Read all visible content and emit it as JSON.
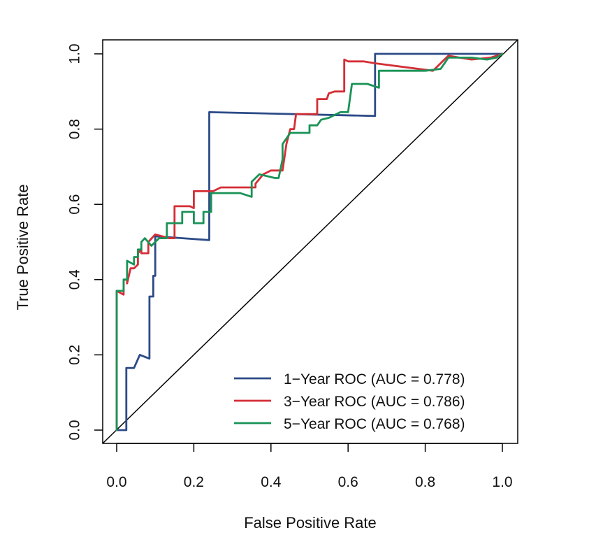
{
  "chart_data": {
    "type": "line",
    "title": "",
    "xlabel": "False Positive Rate",
    "ylabel": "True Positive Rate",
    "xlim": [
      0.0,
      1.0
    ],
    "ylim": [
      0.0,
      1.0
    ],
    "xticks": [
      "0.0",
      "0.2",
      "0.4",
      "0.6",
      "0.8",
      "1.0"
    ],
    "yticks": [
      "0.0",
      "0.2",
      "0.4",
      "0.6",
      "0.8",
      "1.0"
    ],
    "grid": false,
    "legend_position": "bottom-right",
    "reference_line": {
      "x": [
        0,
        1
      ],
      "y": [
        0,
        1
      ],
      "color": "#000000"
    },
    "series": [
      {
        "name": "1−Year ROC (AUC = 0.778)",
        "color": "#2c4b87",
        "x": [
          0.0,
          0.025,
          0.025,
          0.045,
          0.06,
          0.085,
          0.085,
          0.095,
          0.095,
          0.1,
          0.1,
          0.24,
          0.24,
          0.67,
          0.67,
          1.0
        ],
        "y": [
          0.0,
          0.0,
          0.165,
          0.165,
          0.2,
          0.19,
          0.355,
          0.355,
          0.41,
          0.41,
          0.515,
          0.505,
          0.845,
          0.835,
          1.0,
          1.0
        ]
      },
      {
        "name": "3−Year ROC (AUC = 0.786)",
        "color": "#d42e36",
        "x": [
          0.0,
          0.0,
          0.018,
          0.018,
          0.027,
          0.027,
          0.036,
          0.036,
          0.045,
          0.045,
          0.055,
          0.055,
          0.064,
          0.064,
          0.082,
          0.082,
          0.1,
          0.1,
          0.136,
          0.15,
          0.15,
          0.19,
          0.2,
          0.2,
          0.25,
          0.27,
          0.36,
          0.36,
          0.38,
          0.4,
          0.42,
          0.43,
          0.44,
          0.45,
          0.46,
          0.465,
          0.5,
          0.52,
          0.52,
          0.545,
          0.55,
          0.565,
          0.59,
          0.59,
          0.6,
          0.64,
          0.67,
          0.82,
          0.86,
          0.92,
          0.97,
          0.985,
          1.0
        ],
        "y": [
          0.0,
          0.37,
          0.36,
          0.4,
          0.4,
          0.39,
          0.43,
          0.43,
          0.43,
          0.43,
          0.44,
          0.47,
          0.48,
          0.47,
          0.47,
          0.5,
          0.52,
          0.52,
          0.51,
          0.51,
          0.595,
          0.595,
          0.59,
          0.635,
          0.635,
          0.645,
          0.645,
          0.655,
          0.68,
          0.69,
          0.69,
          0.69,
          0.76,
          0.8,
          0.8,
          0.84,
          0.84,
          0.84,
          0.88,
          0.88,
          0.895,
          0.9,
          0.9,
          0.985,
          0.98,
          0.98,
          0.975,
          0.955,
          0.995,
          0.985,
          0.99,
          0.995,
          1.0
        ]
      },
      {
        "name": "5−Year ROC (AUC = 0.768)",
        "color": "#199356",
        "x": [
          0.0,
          0.0,
          0.018,
          0.018,
          0.027,
          0.027,
          0.045,
          0.045,
          0.055,
          0.055,
          0.064,
          0.064,
          0.073,
          0.09,
          0.11,
          0.13,
          0.13,
          0.15,
          0.17,
          0.17,
          0.2,
          0.2,
          0.225,
          0.225,
          0.245,
          0.245,
          0.32,
          0.35,
          0.35,
          0.37,
          0.41,
          0.42,
          0.43,
          0.43,
          0.45,
          0.45,
          0.5,
          0.5,
          0.52,
          0.53,
          0.55,
          0.58,
          0.6,
          0.61,
          0.65,
          0.68,
          0.68,
          0.71,
          0.8,
          0.84,
          0.86,
          0.92,
          0.96,
          0.985,
          1.0
        ],
        "y": [
          0.0,
          0.37,
          0.37,
          0.4,
          0.4,
          0.45,
          0.44,
          0.46,
          0.46,
          0.48,
          0.48,
          0.5,
          0.51,
          0.49,
          0.51,
          0.51,
          0.55,
          0.55,
          0.55,
          0.58,
          0.58,
          0.55,
          0.55,
          0.58,
          0.58,
          0.63,
          0.63,
          0.62,
          0.66,
          0.68,
          0.67,
          0.67,
          0.72,
          0.76,
          0.79,
          0.79,
          0.79,
          0.81,
          0.81,
          0.825,
          0.83,
          0.845,
          0.845,
          0.92,
          0.92,
          0.91,
          0.955,
          0.955,
          0.955,
          0.96,
          0.99,
          0.99,
          0.985,
          0.99,
          1.0
        ]
      }
    ]
  }
}
